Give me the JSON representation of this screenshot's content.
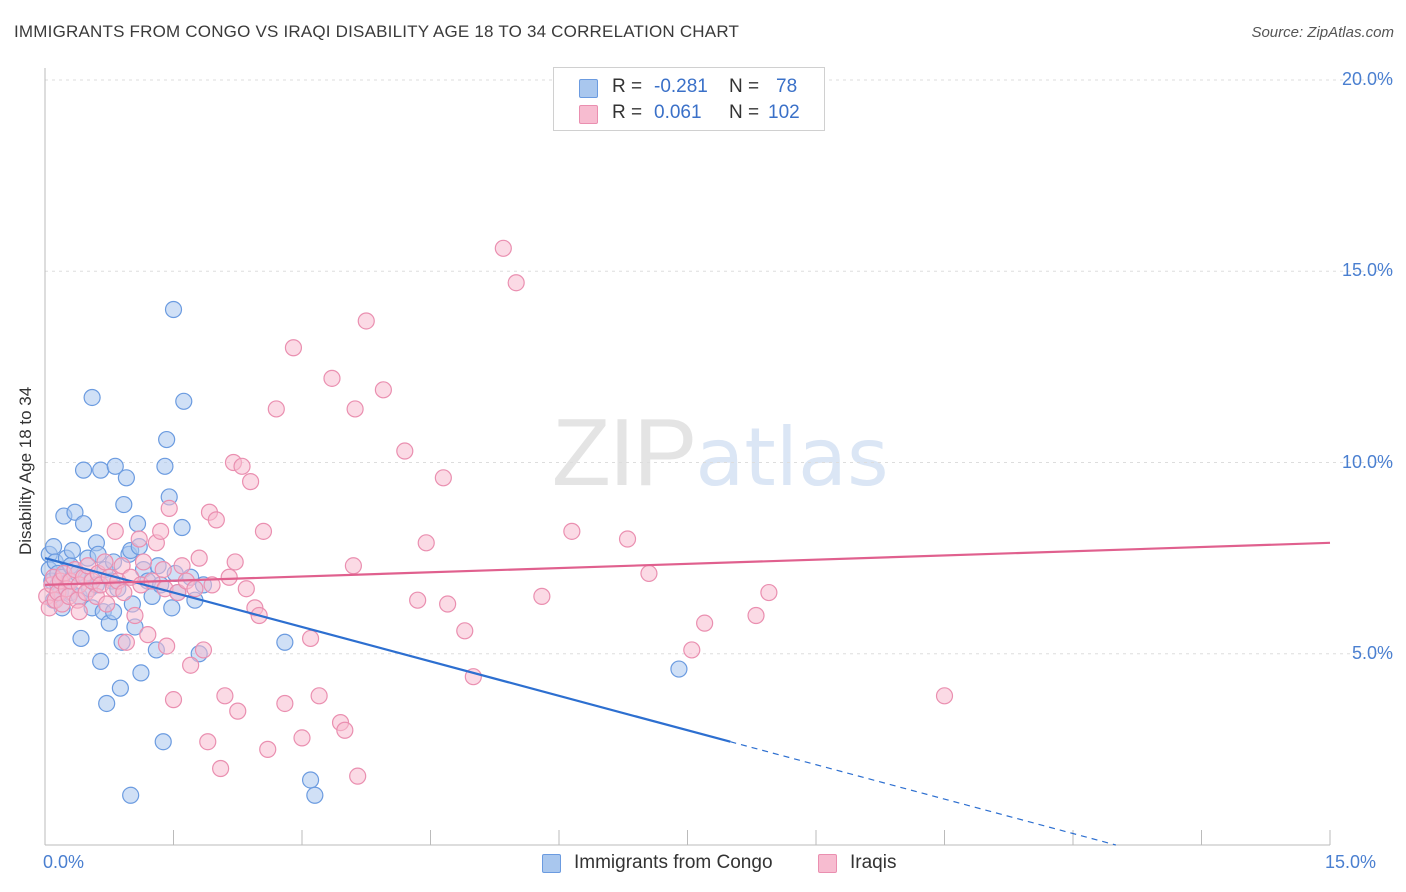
{
  "title": "IMMIGRANTS FROM CONGO VS IRAQI DISABILITY AGE 18 TO 34 CORRELATION CHART",
  "source": "Source: ZipAtlas.com",
  "watermark": {
    "zip": "ZIP",
    "atlas": "atlas"
  },
  "stats": {
    "r_label": "R =",
    "n_label": "N =",
    "congo": {
      "r": "-0.281",
      "n": "78"
    },
    "iraqi": {
      "r": "0.061",
      "n": "102"
    }
  },
  "colors": {
    "congo_fill": "#a9c7ee",
    "congo_stroke": "#6b9be0",
    "congo_line": "#2d6fd0",
    "iraqi_fill": "#f7bcd0",
    "iraqi_stroke": "#ea8fb0",
    "iraqi_line": "#e0608e",
    "tick_text": "#4a7fd0",
    "grid": "#dddddd"
  },
  "chart_data": {
    "type": "scatter",
    "title": "IMMIGRANTS FROM CONGO VS IRAQI DISABILITY AGE 18 TO 34 CORRELATION CHART",
    "xlabel": "",
    "ylabel": "Disability Age 18 to 34",
    "xlim": [
      0,
      15
    ],
    "ylim": [
      0,
      20
    ],
    "x_tick_labels": [
      "0.0%",
      "15.0%"
    ],
    "y_ticks": [
      5,
      10,
      15,
      20
    ],
    "y_tick_labels": [
      "5.0%",
      "10.0%",
      "15.0%",
      "20.0%"
    ],
    "grid": true,
    "legend_position": "bottom-center",
    "series": [
      {
        "name": "Immigrants from Congo",
        "r": -0.281,
        "n": 78,
        "trend": {
          "x0": 0,
          "y0": 7.5,
          "x1": 8,
          "y1": 2.7,
          "dashed_to_x": 12.5
        },
        "points": [
          [
            0.05,
            7.6
          ],
          [
            0.05,
            7.2
          ],
          [
            0.08,
            6.9
          ],
          [
            0.1,
            7.8
          ],
          [
            0.1,
            6.4
          ],
          [
            0.12,
            7.4
          ],
          [
            0.15,
            7.1
          ],
          [
            0.15,
            6.8
          ],
          [
            0.18,
            6.6
          ],
          [
            0.2,
            7.0
          ],
          [
            0.2,
            6.2
          ],
          [
            0.22,
            8.6
          ],
          [
            0.25,
            7.5
          ],
          [
            0.28,
            6.9
          ],
          [
            0.3,
            7.3
          ],
          [
            0.3,
            6.6
          ],
          [
            0.32,
            7.7
          ],
          [
            0.35,
            8.7
          ],
          [
            0.38,
            7.1
          ],
          [
            0.4,
            6.5
          ],
          [
            0.42,
            5.4
          ],
          [
            0.45,
            8.4
          ],
          [
            0.45,
            9.8
          ],
          [
            0.48,
            7.0
          ],
          [
            0.5,
            7.5
          ],
          [
            0.52,
            6.7
          ],
          [
            0.55,
            6.2
          ],
          [
            0.55,
            11.7
          ],
          [
            0.6,
            7.9
          ],
          [
            0.62,
            7.6
          ],
          [
            0.65,
            9.8
          ],
          [
            0.65,
            4.8
          ],
          [
            0.68,
            6.1
          ],
          [
            0.7,
            7.2
          ],
          [
            0.72,
            3.7
          ],
          [
            0.75,
            5.8
          ],
          [
            0.78,
            6.9
          ],
          [
            0.8,
            6.1
          ],
          [
            0.8,
            7.4
          ],
          [
            0.82,
            9.9
          ],
          [
            0.85,
            6.7
          ],
          [
            0.88,
            4.1
          ],
          [
            0.9,
            5.3
          ],
          [
            0.92,
            8.9
          ],
          [
            0.95,
            9.6
          ],
          [
            0.98,
            7.6
          ],
          [
            1.0,
            7.7
          ],
          [
            1.0,
            1.3
          ],
          [
            1.02,
            6.3
          ],
          [
            1.05,
            5.7
          ],
          [
            1.08,
            8.4
          ],
          [
            1.1,
            7.8
          ],
          [
            1.12,
            4.5
          ],
          [
            1.15,
            7.2
          ],
          [
            1.2,
            6.9
          ],
          [
            1.25,
            6.5
          ],
          [
            1.3,
            5.1
          ],
          [
            1.32,
            7.3
          ],
          [
            1.35,
            6.8
          ],
          [
            1.38,
            2.7
          ],
          [
            1.4,
            9.9
          ],
          [
            1.42,
            10.6
          ],
          [
            1.45,
            9.1
          ],
          [
            1.48,
            6.2
          ],
          [
            1.5,
            14.0
          ],
          [
            1.52,
            7.1
          ],
          [
            1.55,
            6.6
          ],
          [
            1.6,
            8.3
          ],
          [
            1.62,
            11.6
          ],
          [
            1.7,
            7.0
          ],
          [
            1.75,
            6.4
          ],
          [
            1.8,
            5.0
          ],
          [
            1.85,
            6.8
          ],
          [
            2.8,
            5.3
          ],
          [
            3.1,
            1.7
          ],
          [
            3.15,
            1.3
          ],
          [
            7.4,
            4.6
          ],
          [
            0.6,
            6.8
          ]
        ]
      },
      {
        "name": "Iraqis",
        "r": 0.061,
        "n": 102,
        "trend": {
          "x0": 0,
          "y0": 6.8,
          "x1": 15,
          "y1": 7.9
        },
        "points": [
          [
            0.02,
            6.5
          ],
          [
            0.05,
            6.2
          ],
          [
            0.08,
            6.8
          ],
          [
            0.1,
            7.0
          ],
          [
            0.12,
            6.4
          ],
          [
            0.15,
            6.6
          ],
          [
            0.18,
            6.9
          ],
          [
            0.2,
            6.3
          ],
          [
            0.22,
            7.1
          ],
          [
            0.25,
            6.7
          ],
          [
            0.28,
            6.5
          ],
          [
            0.3,
            6.9
          ],
          [
            0.35,
            7.2
          ],
          [
            0.38,
            6.4
          ],
          [
            0.4,
            6.8
          ],
          [
            0.45,
            7.0
          ],
          [
            0.48,
            6.6
          ],
          [
            0.5,
            7.3
          ],
          [
            0.55,
            6.9
          ],
          [
            0.6,
            6.5
          ],
          [
            0.62,
            7.1
          ],
          [
            0.65,
            6.8
          ],
          [
            0.7,
            7.4
          ],
          [
            0.72,
            6.3
          ],
          [
            0.75,
            7.0
          ],
          [
            0.8,
            6.7
          ],
          [
            0.82,
            8.2
          ],
          [
            0.85,
            6.9
          ],
          [
            0.9,
            7.3
          ],
          [
            0.92,
            6.6
          ],
          [
            0.95,
            5.3
          ],
          [
            1.0,
            7.0
          ],
          [
            1.05,
            6.0
          ],
          [
            1.1,
            8.0
          ],
          [
            1.12,
            6.8
          ],
          [
            1.15,
            7.4
          ],
          [
            1.2,
            5.5
          ],
          [
            1.25,
            6.9
          ],
          [
            1.3,
            7.9
          ],
          [
            1.35,
            8.2
          ],
          [
            1.38,
            7.2
          ],
          [
            1.4,
            6.7
          ],
          [
            1.42,
            5.2
          ],
          [
            1.45,
            8.8
          ],
          [
            1.5,
            3.8
          ],
          [
            1.55,
            6.6
          ],
          [
            1.6,
            7.3
          ],
          [
            1.65,
            6.9
          ],
          [
            1.7,
            4.7
          ],
          [
            1.75,
            6.7
          ],
          [
            1.8,
            7.5
          ],
          [
            1.85,
            5.1
          ],
          [
            1.9,
            2.7
          ],
          [
            1.92,
            8.7
          ],
          [
            1.95,
            6.8
          ],
          [
            2.0,
            8.5
          ],
          [
            2.05,
            2.0
          ],
          [
            2.1,
            3.9
          ],
          [
            2.15,
            7.0
          ],
          [
            2.2,
            10.0
          ],
          [
            2.22,
            7.4
          ],
          [
            2.25,
            3.5
          ],
          [
            2.3,
            9.9
          ],
          [
            2.35,
            6.7
          ],
          [
            2.4,
            9.5
          ],
          [
            2.45,
            6.2
          ],
          [
            2.5,
            6.0
          ],
          [
            2.55,
            8.2
          ],
          [
            2.6,
            2.5
          ],
          [
            2.7,
            11.4
          ],
          [
            2.8,
            3.7
          ],
          [
            2.9,
            13.0
          ],
          [
            3.0,
            2.8
          ],
          [
            3.1,
            5.4
          ],
          [
            3.2,
            3.9
          ],
          [
            3.35,
            12.2
          ],
          [
            3.45,
            3.2
          ],
          [
            3.5,
            3.0
          ],
          [
            3.6,
            7.3
          ],
          [
            3.62,
            11.4
          ],
          [
            3.65,
            1.8
          ],
          [
            3.75,
            13.7
          ],
          [
            3.95,
            11.9
          ],
          [
            4.2,
            10.3
          ],
          [
            4.35,
            6.4
          ],
          [
            4.45,
            7.9
          ],
          [
            4.65,
            9.6
          ],
          [
            4.7,
            6.3
          ],
          [
            4.9,
            5.6
          ],
          [
            5.0,
            4.4
          ],
          [
            5.35,
            15.6
          ],
          [
            5.5,
            14.7
          ],
          [
            5.8,
            6.5
          ],
          [
            6.15,
            8.2
          ],
          [
            6.8,
            8.0
          ],
          [
            7.05,
            7.1
          ],
          [
            7.55,
            5.1
          ],
          [
            7.7,
            5.8
          ],
          [
            8.3,
            6.0
          ],
          [
            8.45,
            6.6
          ],
          [
            10.5,
            3.9
          ],
          [
            0.4,
            6.1
          ]
        ]
      }
    ]
  },
  "axis": {
    "ylabel": "Disability Age 18 to 34"
  }
}
